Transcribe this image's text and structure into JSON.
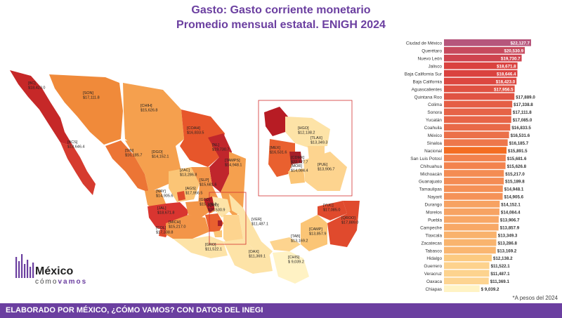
{
  "title_line1": "Gasto: Gasto corriente monetario",
  "title_line2": "Promedio mensual estatal. ENIGH 2024",
  "footer": "ELABORADO POR MÉXICO, ¿CÓMO VAMOS? CON DATOS DEL INEGI",
  "note": "*A pesos del 2024",
  "logo": {
    "line1": "México",
    "line2a": "cómo",
    "line2b": "vamos"
  },
  "colors": {
    "accent": "#6b3fa0",
    "highlight": "#f46d22"
  },
  "chart_data": {
    "type": "bar",
    "orientation": "horizontal",
    "categories": [
      "Ciudad de México",
      "Querétaro",
      "Nuevo León",
      "Jalisco",
      "Baja California Sur",
      "Baja California",
      "Aguascalientes",
      "Quintana Roo",
      "Colima",
      "Sonora",
      "Yucatán",
      "Coahuila",
      "México",
      "Sinaloa",
      "Nacional",
      "San Luis Potosí",
      "Chihuahua",
      "Michoacán",
      "Guanajuato",
      "Tamaulipas",
      "Nayarit",
      "Durango",
      "Morelos",
      "Puebla",
      "Campeche",
      "Tlaxcala",
      "Zacatecas",
      "Tabasco",
      "Hidalgo",
      "Guerrero",
      "Veracruz",
      "Oaxaca",
      "Chiapas"
    ],
    "values": [
      22127.7,
      20530.9,
      19730.7,
      18671.8,
      18646.4,
      18423.0,
      17956.5,
      17889.0,
      17338.8,
      17111.8,
      17085.0,
      16833.5,
      16531.6,
      16185.7,
      15891.5,
      15681.6,
      15626.8,
      15217.0,
      15189.8,
      14948.1,
      14905.6,
      14152.1,
      14084.4,
      13906.7,
      13857.9,
      13349.3,
      13286.8,
      13169.2,
      12138.2,
      11522.1,
      11487.1,
      11369.1,
      9039.2
    ],
    "value_labels": [
      "$22,127.7",
      "$20,530.9",
      "$19,730.7",
      "$18,671.8",
      "$18,646.4",
      "$18,423.0",
      "$17,956.5",
      "$17,889.0",
      "$17,338.8",
      "$17,111.8",
      "$17,085.0",
      "$16,833.5",
      "$16,531.6",
      "$16,185.7",
      "$15,891.5",
      "$15,681.6",
      "$15,626.8",
      "$15,217.0",
      "$15,189.8",
      "$14,948.1",
      "$14,905.6",
      "$14,152.1",
      "$14,084.4",
      "$13,906.7",
      "$13,857.9",
      "$13,349.3",
      "$13,286.8",
      "$13,169.2",
      "$12,138.2",
      "$11,522.1",
      "$11,487.1",
      "$11,369.1",
      "$ 9,039.2"
    ],
    "highlight": "Nacional"
  },
  "map_labels": [
    {
      "code": "[BC]",
      "value": "$18,423.0"
    },
    {
      "code": "[SON]",
      "value": "$17,111.8"
    },
    {
      "code": "[CHIH]",
      "value": "$15,626.8"
    },
    {
      "code": "[COAH]",
      "value": "$16,833.5"
    },
    {
      "code": "[NL]",
      "value": "$19,730.7"
    },
    {
      "code": "[TAMPS]",
      "value": "$14,948.1"
    },
    {
      "code": "[BCS]",
      "value": "$18,646.4"
    },
    {
      "code": "[SIN]",
      "value": "$16,185.7"
    },
    {
      "code": "[DGO]",
      "value": "$14,152.1"
    },
    {
      "code": "[ZAC]",
      "value": "$13,286.8"
    },
    {
      "code": "[SLP]",
      "value": "$15,681.6"
    },
    {
      "code": "[NAY]",
      "value": "$14,905.6"
    },
    {
      "code": "[AGS]",
      "value": "$17,956.5"
    },
    {
      "code": "[GTO]",
      "value": "$15,189.8"
    },
    {
      "code": "[JAL]",
      "value": "$18,671.8"
    },
    {
      "code": "[QRO]",
      "value": "$20,530.9"
    },
    {
      "code": "[MICH]",
      "value": "$15,217.0"
    },
    {
      "code": "[COL]",
      "value": "$17,338.8"
    },
    {
      "code": "[VER]",
      "value": "$11,487.1"
    },
    {
      "code": "[GRO]",
      "value": "$11,522.1"
    },
    {
      "code": "[OAX]",
      "value": "$11,369.1"
    },
    {
      "code": "[TAB]",
      "value": "$13,169.2"
    },
    {
      "code": "[CHIS]",
      "value": "$ 9,039.2"
    },
    {
      "code": "[CAMP]",
      "value": "$13,857.9"
    },
    {
      "code": "[YUC]",
      "value": "$17,085.0"
    },
    {
      "code": "[QROO]",
      "value": "$17,889.0"
    },
    {
      "code": "[HGO]",
      "value": "$12,138.2"
    },
    {
      "code": "[MEX]",
      "value": "$16,531.6"
    },
    {
      "code": "[CDMX]",
      "value": "$22,127.7"
    },
    {
      "code": "[MOR]",
      "value": "$14,084.4"
    },
    {
      "code": "[TLAX]",
      "value": "$13,349.3"
    },
    {
      "code": "[PUE]",
      "value": "$13,906.7"
    }
  ]
}
